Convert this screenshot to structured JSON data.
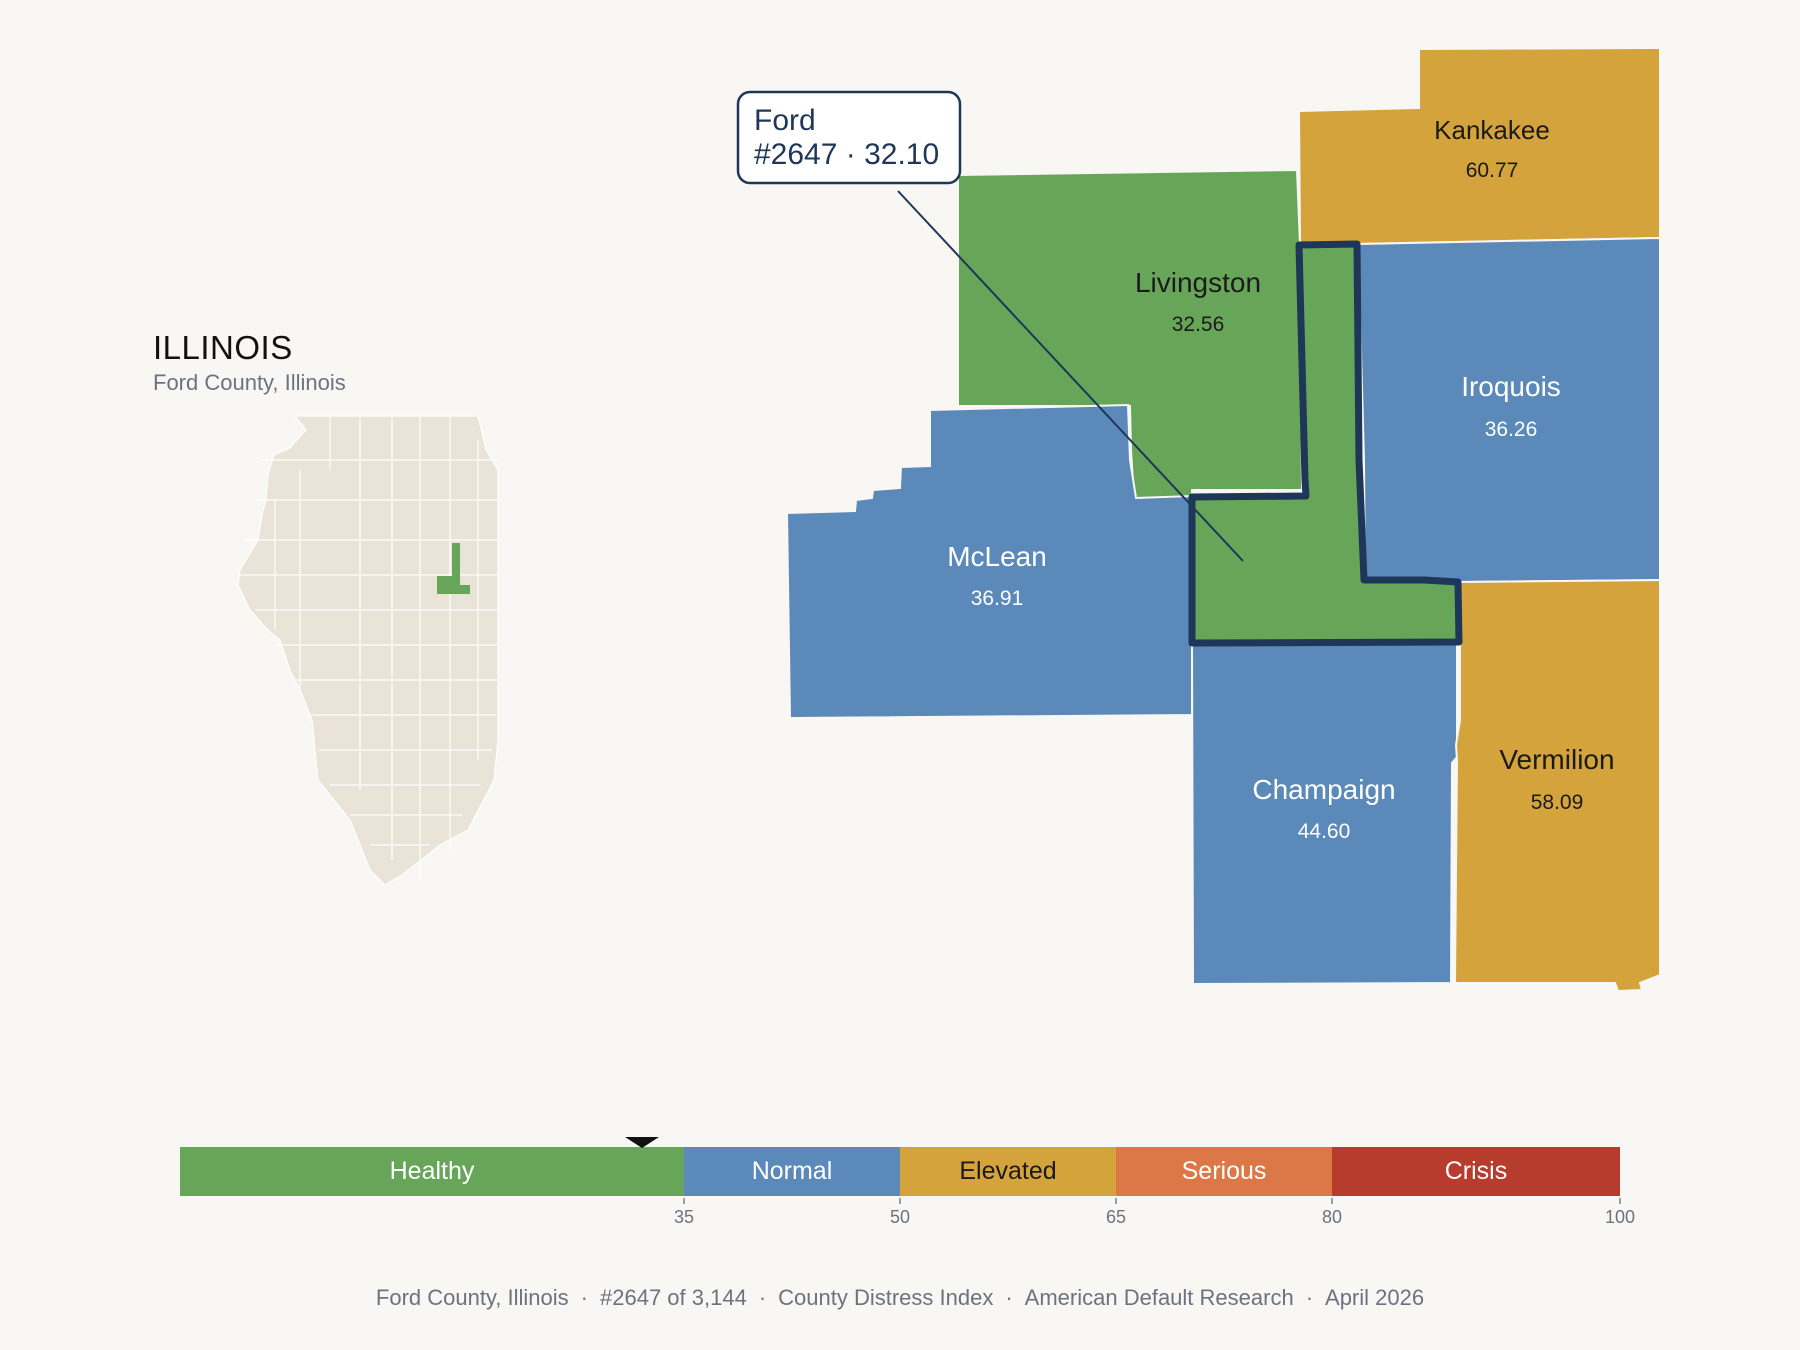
{
  "inset": {
    "state": "ILLINOIS",
    "subtitle": "Ford County, Illinois"
  },
  "callout": {
    "county": "Ford",
    "rank_value": "#2647 · 32.10"
  },
  "counties": [
    {
      "name": "Kankakee",
      "value": "60.77",
      "category": "Elevated"
    },
    {
      "name": "Livingston",
      "value": "32.56",
      "category": "Healthy"
    },
    {
      "name": "Iroquois",
      "value": "36.26",
      "category": "Normal"
    },
    {
      "name": "McLean",
      "value": "36.91",
      "category": "Normal"
    },
    {
      "name": "Champaign",
      "value": "44.60",
      "category": "Normal"
    },
    {
      "name": "Vermilion",
      "value": "58.09",
      "category": "Elevated"
    },
    {
      "name": "Ford",
      "value": "32.10",
      "category": "Healthy"
    }
  ],
  "scale": {
    "min": 0,
    "max": 100,
    "current_value": 32.1,
    "segments": [
      {
        "label": "Healthy",
        "from": 0,
        "to": 35,
        "color": "#67a659"
      },
      {
        "label": "Normal",
        "from": 35,
        "to": 50,
        "color": "#5b89b9"
      },
      {
        "label": "Elevated",
        "from": 50,
        "to": 65,
        "color": "#d4a33b"
      },
      {
        "label": "Serious",
        "from": 65,
        "to": 80,
        "color": "#dc7847"
      },
      {
        "label": "Crisis",
        "from": 80,
        "to": 100,
        "color": "#b83c2e"
      }
    ],
    "ticks": [
      "35",
      "50",
      "65",
      "80",
      "100"
    ]
  },
  "footer": {
    "location": "Ford County, Illinois",
    "rank": "#2647 of 3,144",
    "index": "County Distress Index",
    "source": "American Default Research",
    "date": "April 2026"
  },
  "colors": {
    "background": "#f9f7f4",
    "healthy": "#67a659",
    "normal": "#5b89b9",
    "elevated": "#d4a33b",
    "highlight_border": "#1e3658",
    "inset_fill": "#e9e3d8"
  }
}
